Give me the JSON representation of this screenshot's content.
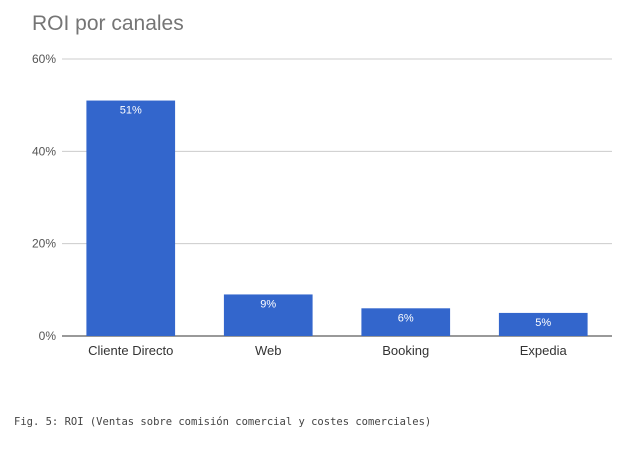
{
  "chart_data": {
    "type": "bar",
    "title": "ROI por canales",
    "categories": [
      "Cliente Directo",
      "Web",
      "Booking",
      "Expedia"
    ],
    "values": [
      51,
      9,
      6,
      5
    ],
    "data_labels": [
      "51%",
      "9%",
      "6%",
      "5%"
    ],
    "ylim": [
      0,
      60
    ],
    "yticks": [
      0,
      20,
      40,
      60
    ],
    "ytick_labels": [
      "0%",
      "20%",
      "40%",
      "60%"
    ],
    "xlabel": "",
    "ylabel": "",
    "grid": true,
    "bar_color": "#3366cc"
  },
  "caption": "Fig. 5: ROI (Ventas sobre comisión comercial y costes comerciales)"
}
